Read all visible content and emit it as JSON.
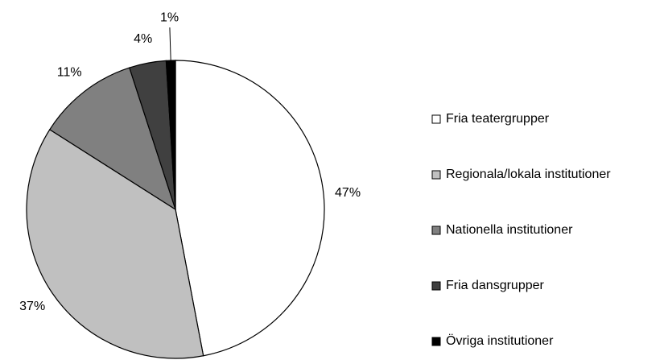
{
  "chart_data": {
    "type": "pie",
    "categories": [
      "Fria teatergrupper",
      "Regionala/lokala institutioner",
      "Nationella institutioner",
      "Fria dansgrupper",
      "Övriga institutioner"
    ],
    "values": [
      47,
      37,
      11,
      4,
      1
    ],
    "value_labels": [
      "47%",
      "37%",
      "11%",
      "4%",
      "1%"
    ],
    "colors": [
      "#ffffff",
      "#c0c0c0",
      "#808080",
      "#404040",
      "#000000"
    ],
    "legend": "right"
  }
}
